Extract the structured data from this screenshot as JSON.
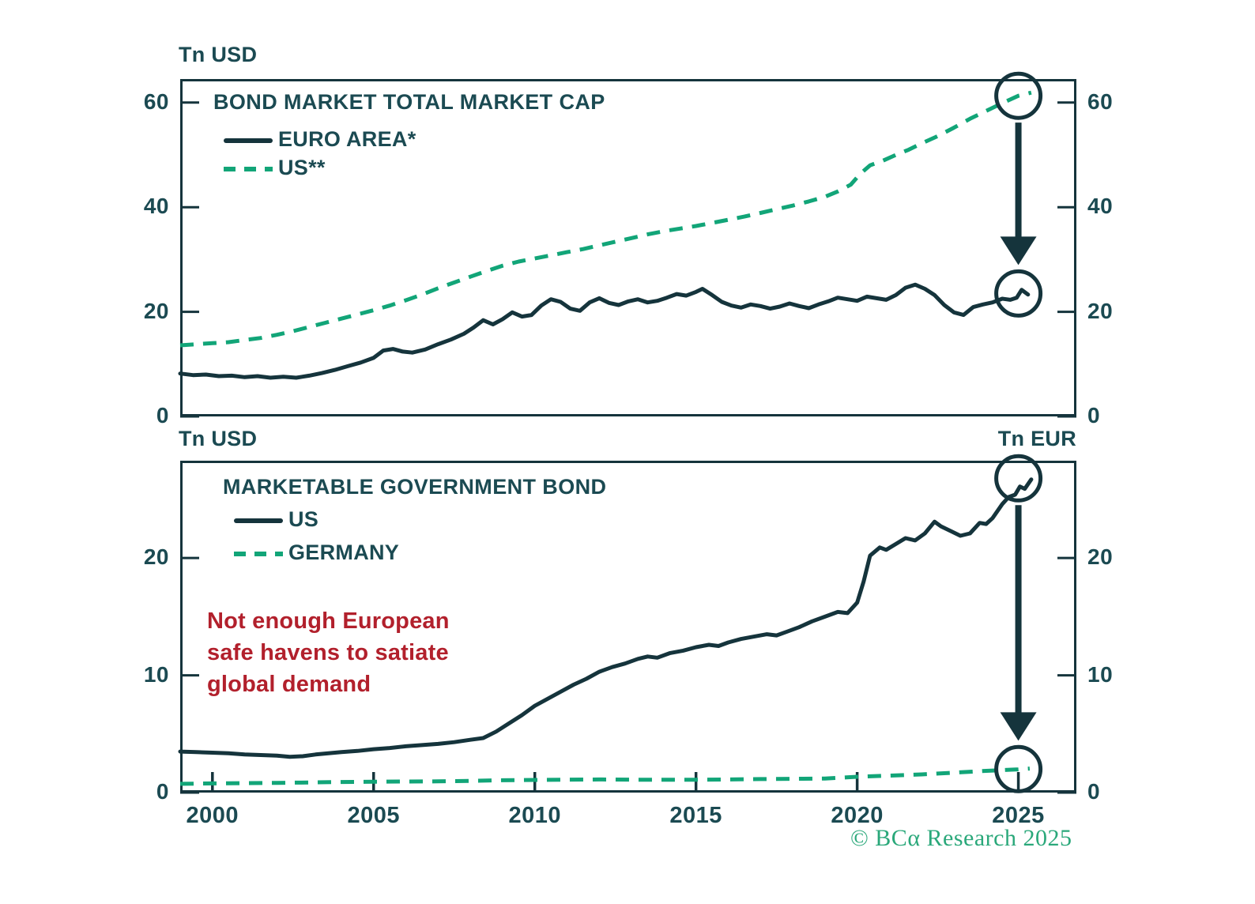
{
  "colors": {
    "dark": "#15343c",
    "text": "#1b4a52",
    "green": "#12a578",
    "red": "#b2202c",
    "footer-green": "#2aa87a"
  },
  "footer": {
    "text": "© BCα Research 2025"
  },
  "chart_data": [
    {
      "type": "line",
      "title": "BOND MARKET TOTAL MARKET CAP",
      "unit_left": "Tn USD",
      "unit_right": "",
      "ylim": [
        0,
        64.5
      ],
      "yticks": [
        0,
        20,
        40,
        60
      ],
      "xlim": [
        1999.0,
        2026.8
      ],
      "xticks": [
        2000,
        2005,
        2010,
        2015,
        2020,
        2025
      ],
      "x_ticks_visible": false,
      "x_labels_visible": false,
      "series": [
        {
          "name": "EURO AREA*",
          "style": "solid",
          "color": "#15343c",
          "points": [
            [
              1999,
              8.2
            ],
            [
              1999.4,
              7.9
            ],
            [
              1999.8,
              8
            ],
            [
              2000.2,
              7.7
            ],
            [
              2000.6,
              7.8
            ],
            [
              2001,
              7.5
            ],
            [
              2001.4,
              7.7
            ],
            [
              2001.8,
              7.4
            ],
            [
              2002.2,
              7.6
            ],
            [
              2002.6,
              7.4
            ],
            [
              2003,
              7.8
            ],
            [
              2003.4,
              8.3
            ],
            [
              2003.8,
              8.9
            ],
            [
              2004.2,
              9.6
            ],
            [
              2004.6,
              10.3
            ],
            [
              2005,
              11.2
            ],
            [
              2005.3,
              12.6
            ],
            [
              2005.6,
              12.9
            ],
            [
              2005.9,
              12.4
            ],
            [
              2006.2,
              12.2
            ],
            [
              2006.6,
              12.8
            ],
            [
              2007,
              13.8
            ],
            [
              2007.4,
              14.7
            ],
            [
              2007.8,
              15.8
            ],
            [
              2008.1,
              17
            ],
            [
              2008.4,
              18.4
            ],
            [
              2008.7,
              17.6
            ],
            [
              2009,
              18.6
            ],
            [
              2009.3,
              19.9
            ],
            [
              2009.6,
              19.1
            ],
            [
              2009.9,
              19.4
            ],
            [
              2010.2,
              21.2
            ],
            [
              2010.5,
              22.4
            ],
            [
              2010.8,
              21.9
            ],
            [
              2011.1,
              20.6
            ],
            [
              2011.4,
              20.2
            ],
            [
              2011.7,
              21.8
            ],
            [
              2012,
              22.6
            ],
            [
              2012.3,
              21.7
            ],
            [
              2012.6,
              21.3
            ],
            [
              2012.9,
              22
            ],
            [
              2013.2,
              22.4
            ],
            [
              2013.5,
              21.8
            ],
            [
              2013.8,
              22.1
            ],
            [
              2014.1,
              22.7
            ],
            [
              2014.4,
              23.4
            ],
            [
              2014.7,
              23.1
            ],
            [
              2015,
              23.8
            ],
            [
              2015.2,
              24.4
            ],
            [
              2015.5,
              23.2
            ],
            [
              2015.8,
              21.9
            ],
            [
              2016.1,
              21.2
            ],
            [
              2016.4,
              20.8
            ],
            [
              2016.7,
              21.4
            ],
            [
              2017,
              21.1
            ],
            [
              2017.3,
              20.6
            ],
            [
              2017.6,
              21
            ],
            [
              2017.9,
              21.6
            ],
            [
              2018.2,
              21.1
            ],
            [
              2018.5,
              20.7
            ],
            [
              2018.8,
              21.4
            ],
            [
              2019.1,
              22
            ],
            [
              2019.4,
              22.7
            ],
            [
              2019.7,
              22.4
            ],
            [
              2020,
              22.1
            ],
            [
              2020.3,
              22.9
            ],
            [
              2020.6,
              22.6
            ],
            [
              2020.9,
              22.3
            ],
            [
              2021.2,
              23.2
            ],
            [
              2021.5,
              24.6
            ],
            [
              2021.8,
              25.2
            ],
            [
              2022.1,
              24.4
            ],
            [
              2022.4,
              23.2
            ],
            [
              2022.7,
              21.3
            ],
            [
              2023,
              19.9
            ],
            [
              2023.3,
              19.4
            ],
            [
              2023.6,
              20.9
            ],
            [
              2023.9,
              21.4
            ],
            [
              2024.2,
              21.8
            ],
            [
              2024.5,
              22.5
            ],
            [
              2024.75,
              22.3
            ],
            [
              2024.95,
              22.7
            ],
            [
              2025.1,
              24.2
            ],
            [
              2025.3,
              23.3
            ]
          ]
        },
        {
          "name": "US**",
          "style": "dashed",
          "color": "#12a578",
          "points": [
            [
              1999,
              13.6
            ],
            [
              1999.5,
              13.8
            ],
            [
              2000,
              14
            ],
            [
              2000.5,
              14.2
            ],
            [
              2001,
              14.6
            ],
            [
              2001.5,
              15
            ],
            [
              2002,
              15.6
            ],
            [
              2002.5,
              16.3
            ],
            [
              2003,
              17.1
            ],
            [
              2003.5,
              17.9
            ],
            [
              2004,
              18.7
            ],
            [
              2004.5,
              19.5
            ],
            [
              2005,
              20.3
            ],
            [
              2005.5,
              21.2
            ],
            [
              2006,
              22.2
            ],
            [
              2006.5,
              23.3
            ],
            [
              2007,
              24.5
            ],
            [
              2007.5,
              25.6
            ],
            [
              2008,
              26.7
            ],
            [
              2008.5,
              27.8
            ],
            [
              2009,
              28.8
            ],
            [
              2009.5,
              29.6
            ],
            [
              2010,
              30.2
            ],
            [
              2010.5,
              30.8
            ],
            [
              2011,
              31.4
            ],
            [
              2011.5,
              32
            ],
            [
              2012,
              32.7
            ],
            [
              2012.5,
              33.4
            ],
            [
              2013,
              34.1
            ],
            [
              2013.5,
              34.8
            ],
            [
              2014,
              35.4
            ],
            [
              2014.5,
              35.9
            ],
            [
              2015,
              36.4
            ],
            [
              2015.5,
              37
            ],
            [
              2016,
              37.6
            ],
            [
              2016.5,
              38.2
            ],
            [
              2017,
              38.9
            ],
            [
              2017.5,
              39.6
            ],
            [
              2018,
              40.3
            ],
            [
              2018.5,
              41.1
            ],
            [
              2019,
              42
            ],
            [
              2019.4,
              43
            ],
            [
              2019.8,
              44.3
            ],
            [
              2020.1,
              46.4
            ],
            [
              2020.4,
              48
            ],
            [
              2020.8,
              48.9
            ],
            [
              2021.2,
              50
            ],
            [
              2021.6,
              51
            ],
            [
              2022,
              52.2
            ],
            [
              2022.5,
              53.6
            ],
            [
              2023,
              55.2
            ],
            [
              2023.5,
              56.9
            ],
            [
              2024,
              58.4
            ],
            [
              2024.5,
              59.9
            ],
            [
              2025,
              61.3
            ],
            [
              2025.4,
              61.9
            ]
          ]
        }
      ],
      "highlights": [
        {
          "series": "US**",
          "year": 2025,
          "value": 61.3
        },
        {
          "series": "EURO AREA*",
          "year": 2025,
          "value": 23.5
        }
      ],
      "arrow": {
        "year": 2025,
        "from_value": 61.3,
        "to_value": 23.5
      }
    },
    {
      "type": "line",
      "title": "MARKETABLE GOVERNMENT BOND",
      "unit_left": "Tn USD",
      "unit_right": "Tn EUR",
      "ylim": [
        0,
        28.3
      ],
      "yticks": [
        0,
        10,
        20
      ],
      "xlim": [
        1999.0,
        2026.8
      ],
      "xticks": [
        2000,
        2005,
        2010,
        2015,
        2020,
        2025
      ],
      "x_ticks_visible": true,
      "x_labels_visible": true,
      "note": {
        "text": "Not enough European\nsafe havens to satiate\nglobal demand",
        "color": "#b2202c"
      },
      "series": [
        {
          "name": "US",
          "style": "solid",
          "color": "#15343c",
          "points": [
            [
              1999,
              3.5
            ],
            [
              1999.5,
              3.45
            ],
            [
              2000,
              3.4
            ],
            [
              2000.5,
              3.35
            ],
            [
              2001,
              3.25
            ],
            [
              2001.5,
              3.2
            ],
            [
              2002,
              3.15
            ],
            [
              2002.4,
              3.05
            ],
            [
              2002.8,
              3.1
            ],
            [
              2003.2,
              3.25
            ],
            [
              2003.6,
              3.35
            ],
            [
              2004,
              3.45
            ],
            [
              2004.5,
              3.55
            ],
            [
              2005,
              3.7
            ],
            [
              2005.5,
              3.8
            ],
            [
              2006,
              3.95
            ],
            [
              2006.5,
              4.05
            ],
            [
              2007,
              4.15
            ],
            [
              2007.5,
              4.3
            ],
            [
              2008,
              4.5
            ],
            [
              2008.4,
              4.65
            ],
            [
              2008.8,
              5.2
            ],
            [
              2009.2,
              5.9
            ],
            [
              2009.6,
              6.6
            ],
            [
              2010,
              7.4
            ],
            [
              2010.4,
              8
            ],
            [
              2010.8,
              8.6
            ],
            [
              2011.2,
              9.2
            ],
            [
              2011.6,
              9.7
            ],
            [
              2012,
              10.3
            ],
            [
              2012.4,
              10.7
            ],
            [
              2012.8,
              11
            ],
            [
              2013.2,
              11.4
            ],
            [
              2013.5,
              11.6
            ],
            [
              2013.8,
              11.5
            ],
            [
              2014.2,
              11.9
            ],
            [
              2014.6,
              12.1
            ],
            [
              2015,
              12.4
            ],
            [
              2015.4,
              12.6
            ],
            [
              2015.7,
              12.5
            ],
            [
              2016,
              12.8
            ],
            [
              2016.4,
              13.1
            ],
            [
              2016.8,
              13.3
            ],
            [
              2017.2,
              13.5
            ],
            [
              2017.5,
              13.4
            ],
            [
              2017.8,
              13.7
            ],
            [
              2018.2,
              14.1
            ],
            [
              2018.6,
              14.6
            ],
            [
              2019,
              15
            ],
            [
              2019.4,
              15.4
            ],
            [
              2019.7,
              15.3
            ],
            [
              2020,
              16.2
            ],
            [
              2020.2,
              18
            ],
            [
              2020.4,
              20.2
            ],
            [
              2020.7,
              20.9
            ],
            [
              2020.9,
              20.7
            ],
            [
              2021.2,
              21.2
            ],
            [
              2021.5,
              21.7
            ],
            [
              2021.8,
              21.5
            ],
            [
              2022.1,
              22.1
            ],
            [
              2022.4,
              23.1
            ],
            [
              2022.6,
              22.7
            ],
            [
              2022.9,
              22.3
            ],
            [
              2023.2,
              21.9
            ],
            [
              2023.5,
              22.1
            ],
            [
              2023.8,
              23
            ],
            [
              2024,
              22.9
            ],
            [
              2024.2,
              23.4
            ],
            [
              2024.5,
              24.6
            ],
            [
              2024.7,
              25.2
            ],
            [
              2024.9,
              25.4
            ],
            [
              2025.05,
              26.1
            ],
            [
              2025.2,
              25.9
            ],
            [
              2025.4,
              26.7
            ]
          ]
        },
        {
          "name": "GERMANY",
          "style": "dashed",
          "color": "#12a578",
          "points": [
            [
              1999,
              0.75
            ],
            [
              2000,
              0.78
            ],
            [
              2001,
              0.8
            ],
            [
              2002,
              0.83
            ],
            [
              2003,
              0.86
            ],
            [
              2004,
              0.9
            ],
            [
              2005,
              0.92
            ],
            [
              2006,
              0.94
            ],
            [
              2007,
              0.96
            ],
            [
              2008,
              1
            ],
            [
              2009,
              1.05
            ],
            [
              2010,
              1.08
            ],
            [
              2011,
              1.1
            ],
            [
              2012,
              1.12
            ],
            [
              2013,
              1.1
            ],
            [
              2014,
              1.1
            ],
            [
              2015,
              1.1
            ],
            [
              2016,
              1.12
            ],
            [
              2017,
              1.15
            ],
            [
              2018,
              1.17
            ],
            [
              2019,
              1.2
            ],
            [
              2020,
              1.35
            ],
            [
              2021,
              1.45
            ],
            [
              2022,
              1.55
            ],
            [
              2023,
              1.7
            ],
            [
              2024,
              1.85
            ],
            [
              2025,
              1.98
            ],
            [
              2025.35,
              2.05
            ]
          ]
        }
      ],
      "highlights": [
        {
          "series": "US",
          "year": 2025,
          "value": 26.8
        },
        {
          "series": "GERMANY",
          "year": 2025,
          "value": 2.0
        }
      ],
      "arrow": {
        "year": 2025,
        "from_value": 26.8,
        "to_value": 2.0
      }
    }
  ]
}
